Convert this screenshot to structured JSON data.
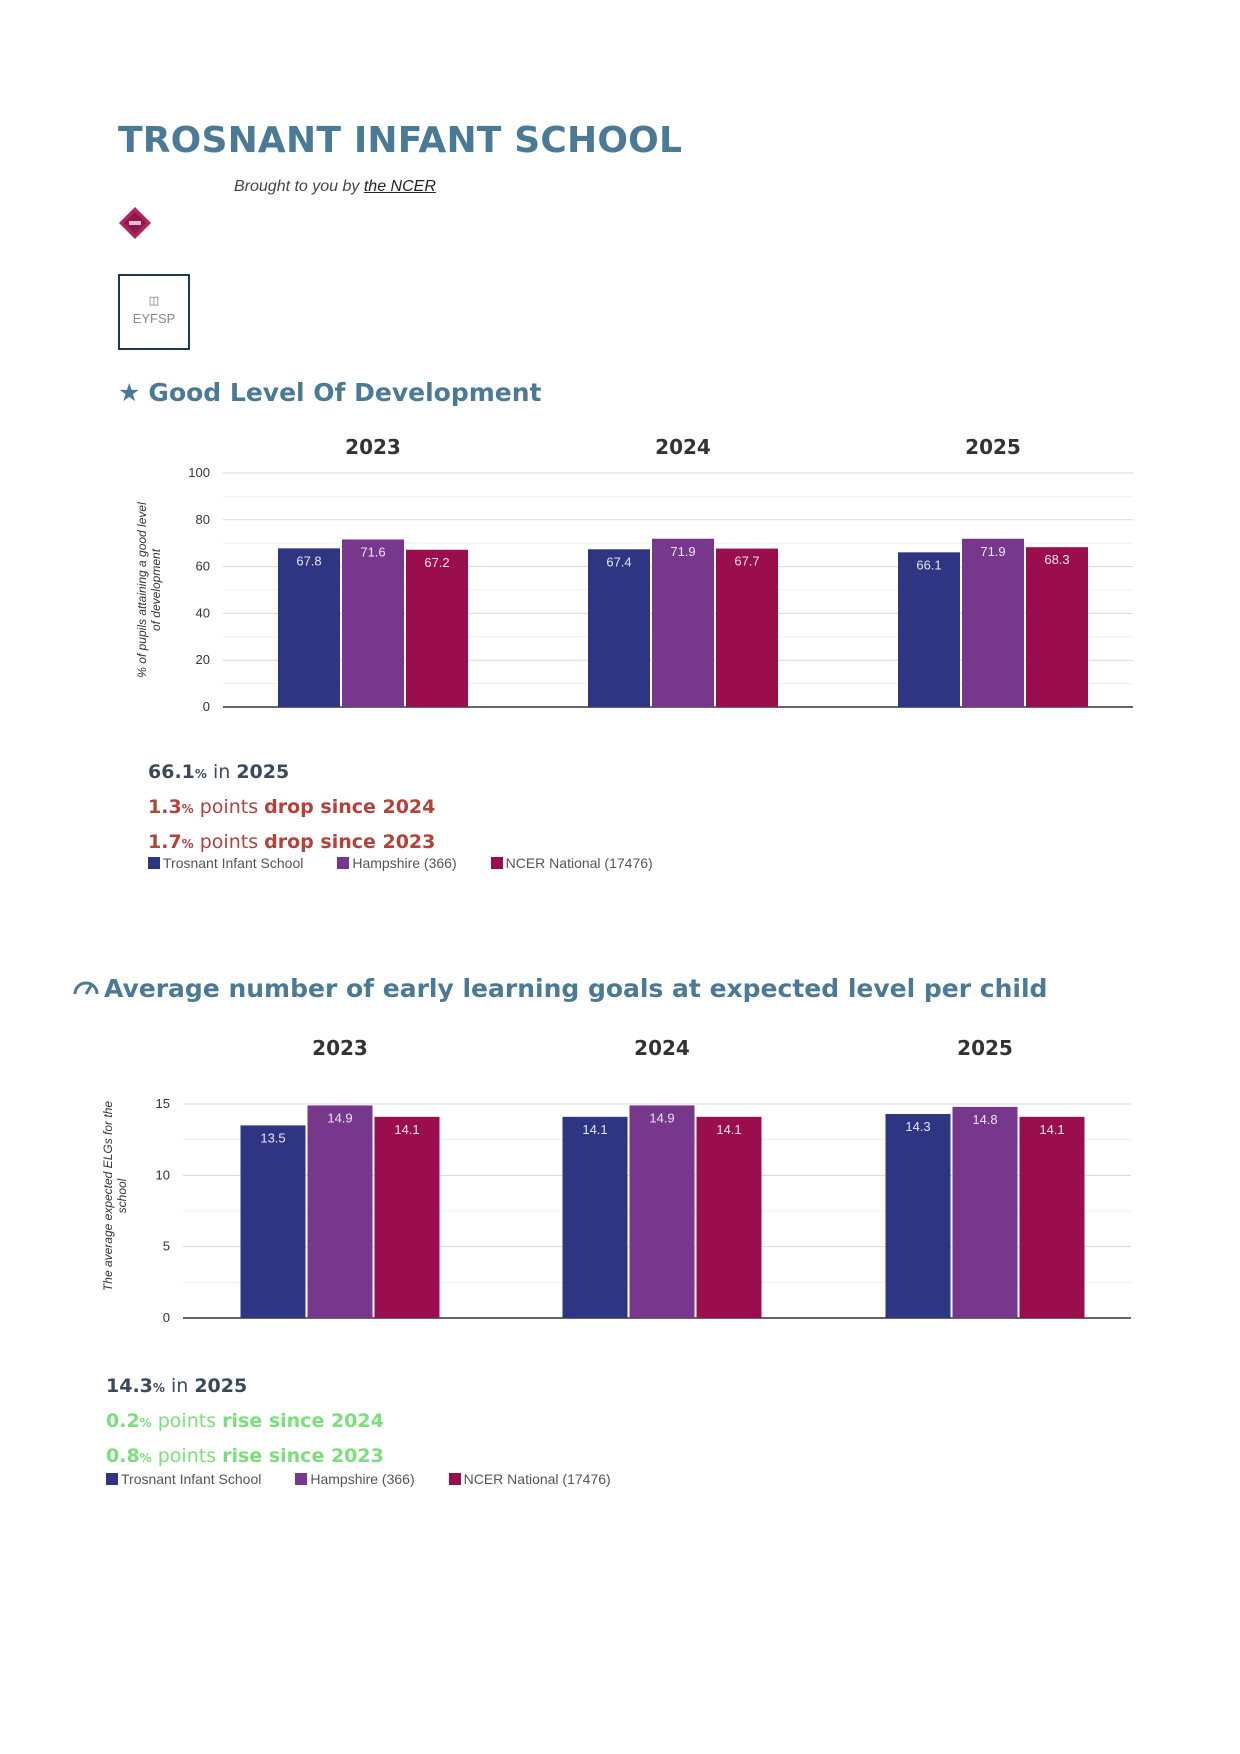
{
  "header": {
    "title": "TROSNANT INFANT SCHOOL",
    "brought_prefix": "Brought to you by ",
    "brought_link": "the NCER",
    "eyfsp_label": "EYFSP",
    "logo_icon": "ncer-diamond-logo",
    "eyfsp_icon": "document-icon"
  },
  "colors": {
    "school": "#2e3583",
    "county": "#76378c",
    "national": "#9a0e4d",
    "title": "#4a7a96",
    "drop": "#b5413a",
    "rise": "#7be07b"
  },
  "sections": [
    {
      "title": "Good Level Of Development",
      "icon": "star-icon",
      "summary": {
        "main_value": "66.1",
        "main_unit": "%",
        "main_text": " in ",
        "main_year": "2025",
        "line1_value": "1.3",
        "line1_unit": "%",
        "line1_text": " points ",
        "line1_word": "drop since 2024",
        "line2_value": "1.7",
        "line2_unit": "%",
        "line2_text": " points ",
        "line2_word": "drop since 2023"
      }
    },
    {
      "title": "Average number of early learning goals at expected level per child",
      "icon": "gauge-icon",
      "summary": {
        "main_value": "14.3",
        "main_unit": "%",
        "main_text": " in ",
        "main_year": "2025",
        "line1_value": "0.2",
        "line1_unit": "%",
        "line1_text": " points ",
        "line1_word": "rise since 2024",
        "line2_value": "0.8",
        "line2_unit": "%",
        "line2_text": " points ",
        "line2_word": "rise since 2023"
      }
    }
  ],
  "legend": [
    "Trosnant Infant School",
    "Hampshire (366)",
    "NCER National (17476)"
  ],
  "chart_data": [
    {
      "type": "bar",
      "categories": [
        "2023",
        "2024",
        "2025"
      ],
      "ylabel": "% of pupils attaining a good level of development",
      "ylim": [
        0,
        100
      ],
      "yticks": [
        0,
        20,
        40,
        60,
        80,
        100
      ],
      "grid": true,
      "series": [
        {
          "name": "Trosnant Infant School",
          "values": [
            67.8,
            67.4,
            66.1
          ]
        },
        {
          "name": "Hampshire (366)",
          "values": [
            71.6,
            71.9,
            71.9
          ]
        },
        {
          "name": "NCER National (17476)",
          "values": [
            67.2,
            67.7,
            68.3
          ]
        }
      ]
    },
    {
      "type": "bar",
      "categories": [
        "2023",
        "2024",
        "2025"
      ],
      "ylabel": "The average expected ELGs for the school",
      "ylim": [
        0,
        15
      ],
      "yticks": [
        0,
        5,
        10,
        15
      ],
      "grid": true,
      "series": [
        {
          "name": "Trosnant Infant School",
          "values": [
            13.5,
            14.1,
            14.3
          ]
        },
        {
          "name": "Hampshire (366)",
          "values": [
            14.9,
            14.9,
            14.8
          ]
        },
        {
          "name": "NCER National (17476)",
          "values": [
            14.1,
            14.1,
            14.1
          ]
        }
      ]
    }
  ]
}
